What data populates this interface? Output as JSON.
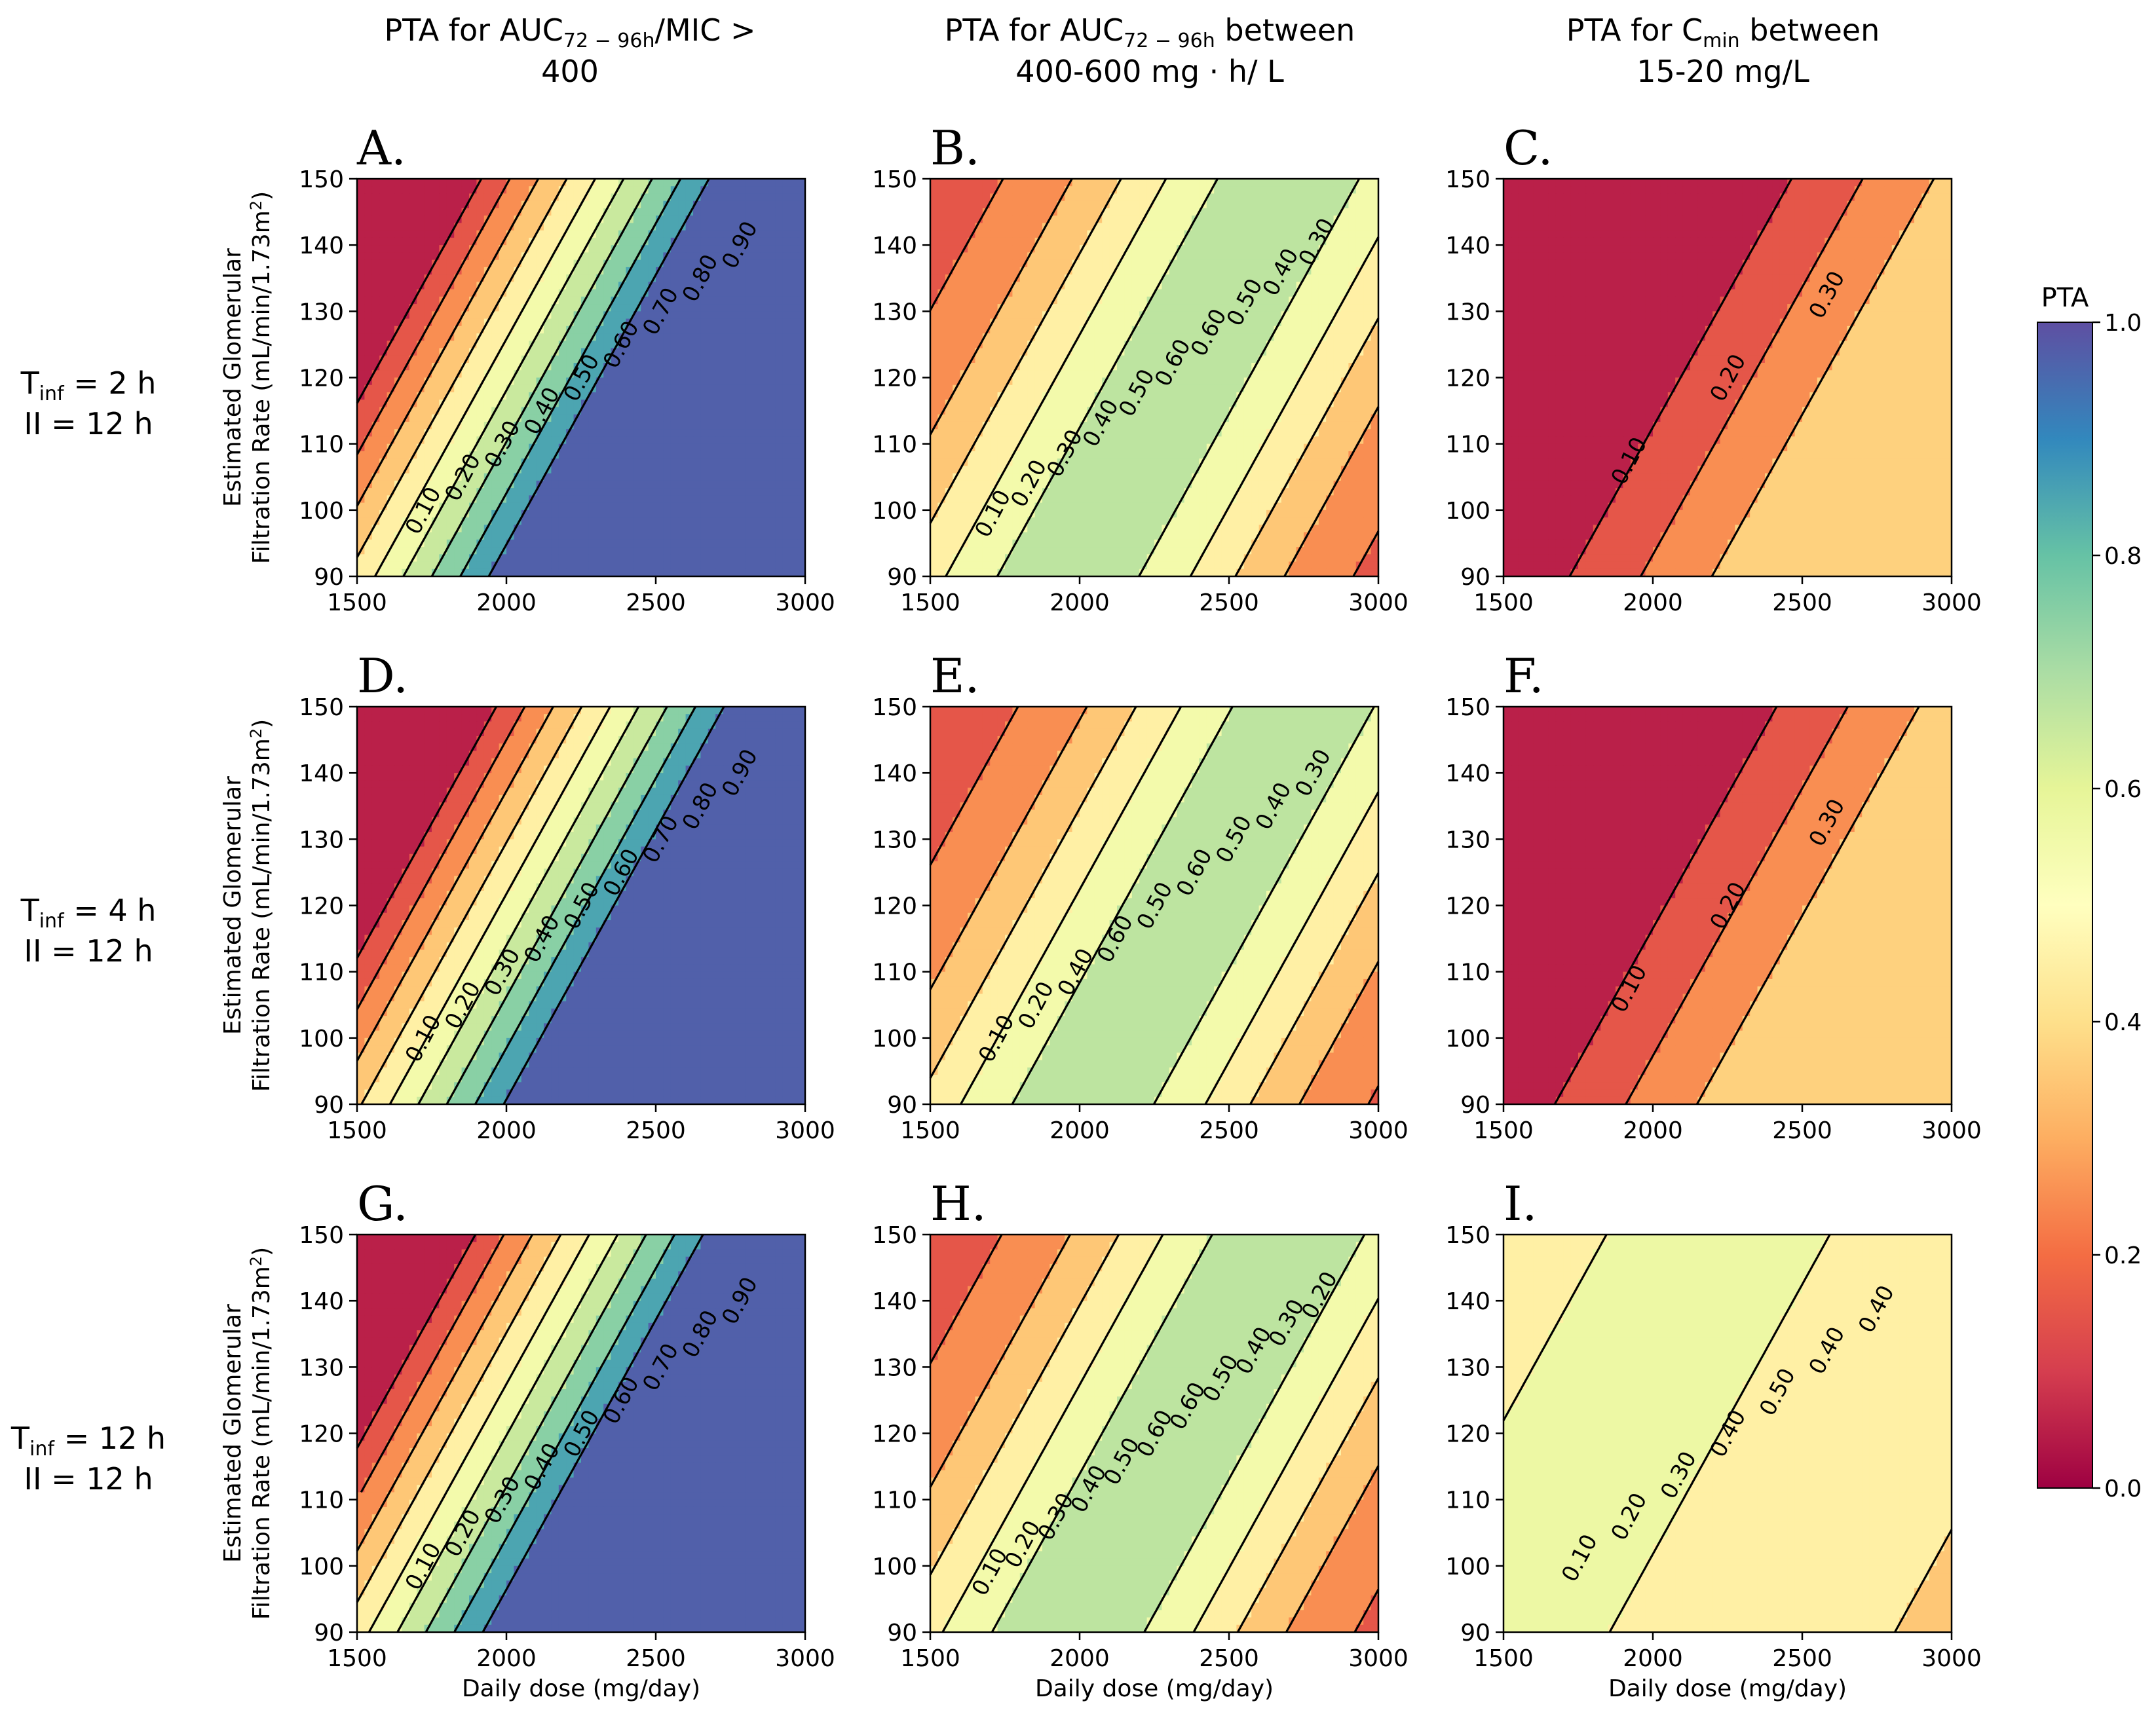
{
  "columns": [
    {
      "title_parts": [
        "PTA for AUC",
        "72 − 96h",
        "/MIC >"
      ],
      "title_line2": "400"
    },
    {
      "title_parts": [
        "PTA for AUC",
        "72 − 96h",
        " between"
      ],
      "title_line2": "400-600 mg · h/ L"
    },
    {
      "title_parts": [
        "PTA for C",
        "min",
        " between"
      ],
      "title_line2": "15-20 mg/L"
    }
  ],
  "rows": [
    {
      "tinf_label": "2 h",
      "ii_label": "II = 12 h"
    },
    {
      "tinf_label": "4 h",
      "ii_label": "II = 12 h"
    },
    {
      "tinf_label": "12 h",
      "ii_label": "II = 12 h"
    }
  ],
  "tinf_prefix": "T",
  "tinf_sub": "inf",
  "tinf_eq": " = ",
  "colorbar": {
    "title": "PTA",
    "ticks": [
      "0.0",
      "0.2",
      "0.4",
      "0.6",
      "0.8",
      "1.0"
    ],
    "range": [
      0,
      1
    ]
  },
  "axis_labels": {
    "ylabel_line1": "Estimated Glomerular",
    "ylabel_line2_pre": "Filtration Rate (mL/min/1.73m",
    "ylabel_sup": "2",
    "ylabel_close": ")",
    "xlabel": "Daily dose (mg/day)"
  },
  "chart_data": [
    {
      "type": "contour",
      "panel": "A.",
      "xlim": [
        1500,
        3000
      ],
      "ylim": [
        90,
        150
      ],
      "x_ticks": [
        "1500",
        "2000",
        "2500",
        "3000"
      ],
      "y_ticks": [
        "90",
        "100",
        "110",
        "120",
        "130",
        "140",
        "150"
      ],
      "model": {
        "kind": "linear",
        "base": 0.47,
        "a": 0.00105,
        "b": -0.0129,
        "x0": 1900,
        "y0": 120
      },
      "levels": [
        0.1,
        0.2,
        0.3,
        0.4,
        0.5,
        0.6,
        0.7,
        0.8,
        0.9
      ],
      "contour_labels": [
        "0.10",
        "0.20",
        "0.30",
        "0.40",
        "0.50",
        "0.60",
        "0.70",
        "0.80",
        "0.90"
      ]
    },
    {
      "type": "contour",
      "panel": "B.",
      "xlim": [
        1500,
        3000
      ],
      "ylim": [
        90,
        150
      ],
      "x_ticks": [
        "1500",
        "2000",
        "2500",
        "3000"
      ],
      "y_ticks": [
        "90",
        "100",
        "110",
        "120",
        "130",
        "140",
        "150"
      ],
      "model": {
        "kind": "peak",
        "peak": 0.66,
        "plateau": 0.12,
        "k": 1.9,
        "a": 0.00105,
        "b": -0.0129,
        "x0": 2330,
        "y0": 120
      },
      "levels": [
        0.1,
        0.2,
        0.3,
        0.4,
        0.5,
        0.6
      ],
      "contour_labels": [
        "0.10",
        "0.20",
        "0.30",
        "0.40",
        "0.50",
        "0.60",
        "0.60",
        "0.50",
        "0.40",
        "0.30"
      ]
    },
    {
      "type": "contour",
      "panel": "C.",
      "xlim": [
        1500,
        3000
      ],
      "ylim": [
        90,
        150
      ],
      "x_ticks": [
        "1500",
        "2000",
        "2500",
        "3000"
      ],
      "y_ticks": [
        "90",
        "100",
        "110",
        "120",
        "130",
        "140",
        "150"
      ],
      "model": {
        "kind": "ramp",
        "a": 0.00042,
        "b": -0.0052,
        "x0": 1950,
        "y0": 120,
        "max": 0.34
      },
      "levels": [
        0.1,
        0.2,
        0.3
      ],
      "contour_labels": [
        "0.10",
        "0.20",
        "0.30"
      ]
    },
    {
      "type": "contour",
      "panel": "D.",
      "xlim": [
        1500,
        3000
      ],
      "ylim": [
        90,
        150
      ],
      "x_ticks": [
        "1500",
        "2000",
        "2500",
        "3000"
      ],
      "y_ticks": [
        "90",
        "100",
        "110",
        "120",
        "130",
        "140",
        "150"
      ],
      "model": {
        "kind": "linear",
        "base": 0.47,
        "a": 0.00105,
        "b": -0.0129,
        "x0": 1950,
        "y0": 120
      },
      "levels": [
        0.1,
        0.2,
        0.3,
        0.4,
        0.5,
        0.6,
        0.7,
        0.8,
        0.9
      ],
      "contour_labels": [
        "0.10",
        "0.20",
        "0.30",
        "0.40",
        "0.50",
        "0.60",
        "0.70",
        "0.80",
        "0.90"
      ]
    },
    {
      "type": "contour",
      "panel": "E.",
      "xlim": [
        1500,
        3000
      ],
      "ylim": [
        90,
        150
      ],
      "x_ticks": [
        "1500",
        "2000",
        "2500",
        "3000"
      ],
      "y_ticks": [
        "90",
        "100",
        "110",
        "120",
        "130",
        "140",
        "150"
      ],
      "model": {
        "kind": "peak",
        "peak": 0.66,
        "plateau": 0.12,
        "k": 1.9,
        "a": 0.00105,
        "b": -0.0129,
        "x0": 2380,
        "y0": 120
      },
      "levels": [
        0.1,
        0.2,
        0.3,
        0.4,
        0.5,
        0.6
      ],
      "contour_labels": [
        "0.10",
        "0.20",
        "0.40",
        "0.60",
        "0.50",
        "0.60",
        "0.50",
        "0.40",
        "0.30"
      ]
    },
    {
      "type": "contour",
      "panel": "F.",
      "xlim": [
        1500,
        3000
      ],
      "ylim": [
        90,
        150
      ],
      "x_ticks": [
        "1500",
        "2000",
        "2500",
        "3000"
      ],
      "y_ticks": [
        "90",
        "100",
        "110",
        "120",
        "130",
        "140",
        "150"
      ],
      "model": {
        "kind": "ramp",
        "a": 0.00042,
        "b": -0.0052,
        "x0": 1900,
        "y0": 120,
        "max": 0.36
      },
      "levels": [
        0.1,
        0.2,
        0.3
      ],
      "contour_labels": [
        "0.10",
        "0.20",
        "0.30"
      ]
    },
    {
      "type": "contour",
      "panel": "G.",
      "xlim": [
        1500,
        3000
      ],
      "ylim": [
        90,
        150
      ],
      "x_ticks": [
        "1500",
        "2000",
        "2500",
        "3000"
      ],
      "y_ticks": [
        "90",
        "100",
        "110",
        "120",
        "130",
        "140",
        "150"
      ],
      "model": {
        "kind": "linear",
        "base": 0.47,
        "a": 0.00105,
        "b": -0.0129,
        "x0": 1880,
        "y0": 120
      },
      "levels": [
        0.1,
        0.2,
        0.3,
        0.4,
        0.5,
        0.6,
        0.7,
        0.8,
        0.9
      ],
      "contour_labels": [
        "0.10",
        "0.20",
        "0.30",
        "0.40",
        "0.50",
        "0.60",
        "0.70",
        "0.80",
        "0.90"
      ]
    },
    {
      "type": "contour",
      "panel": "H.",
      "xlim": [
        1500,
        3000
      ],
      "ylim": [
        90,
        150
      ],
      "x_ticks": [
        "1500",
        "2000",
        "2500",
        "3000"
      ],
      "y_ticks": [
        "90",
        "100",
        "110",
        "120",
        "130",
        "140",
        "150"
      ],
      "model": {
        "kind": "peak",
        "peak": 0.67,
        "plateau": 0.12,
        "k": 1.9,
        "a": 0.00105,
        "b": -0.0129,
        "x0": 2330,
        "y0": 120
      },
      "levels": [
        0.1,
        0.2,
        0.3,
        0.4,
        0.5,
        0.6
      ],
      "contour_labels": [
        "0.10",
        "0.20",
        "0.30",
        "0.40",
        "0.50",
        "0.60",
        "0.60",
        "0.50",
        "0.40",
        "0.30",
        "0.20"
      ]
    },
    {
      "type": "contour",
      "panel": "I.",
      "xlim": [
        1500,
        3000
      ],
      "ylim": [
        90,
        150
      ],
      "x_ticks": [
        "1500",
        "2000",
        "2500",
        "3000"
      ],
      "y_ticks": [
        "90",
        "100",
        "110",
        "120",
        "130",
        "140",
        "150"
      ],
      "model": {
        "kind": "peak",
        "peak": 0.52,
        "plateau": 0.38,
        "k": 1.0,
        "a": 0.00105,
        "b": -0.0129,
        "x0": 1850,
        "y0": 120
      },
      "levels": [
        0.1,
        0.2,
        0.3,
        0.4,
        0.5
      ],
      "contour_labels": [
        "0.10",
        "0.20",
        "0.30",
        "0.40",
        "0.50",
        "0.40",
        "0.40"
      ]
    }
  ]
}
